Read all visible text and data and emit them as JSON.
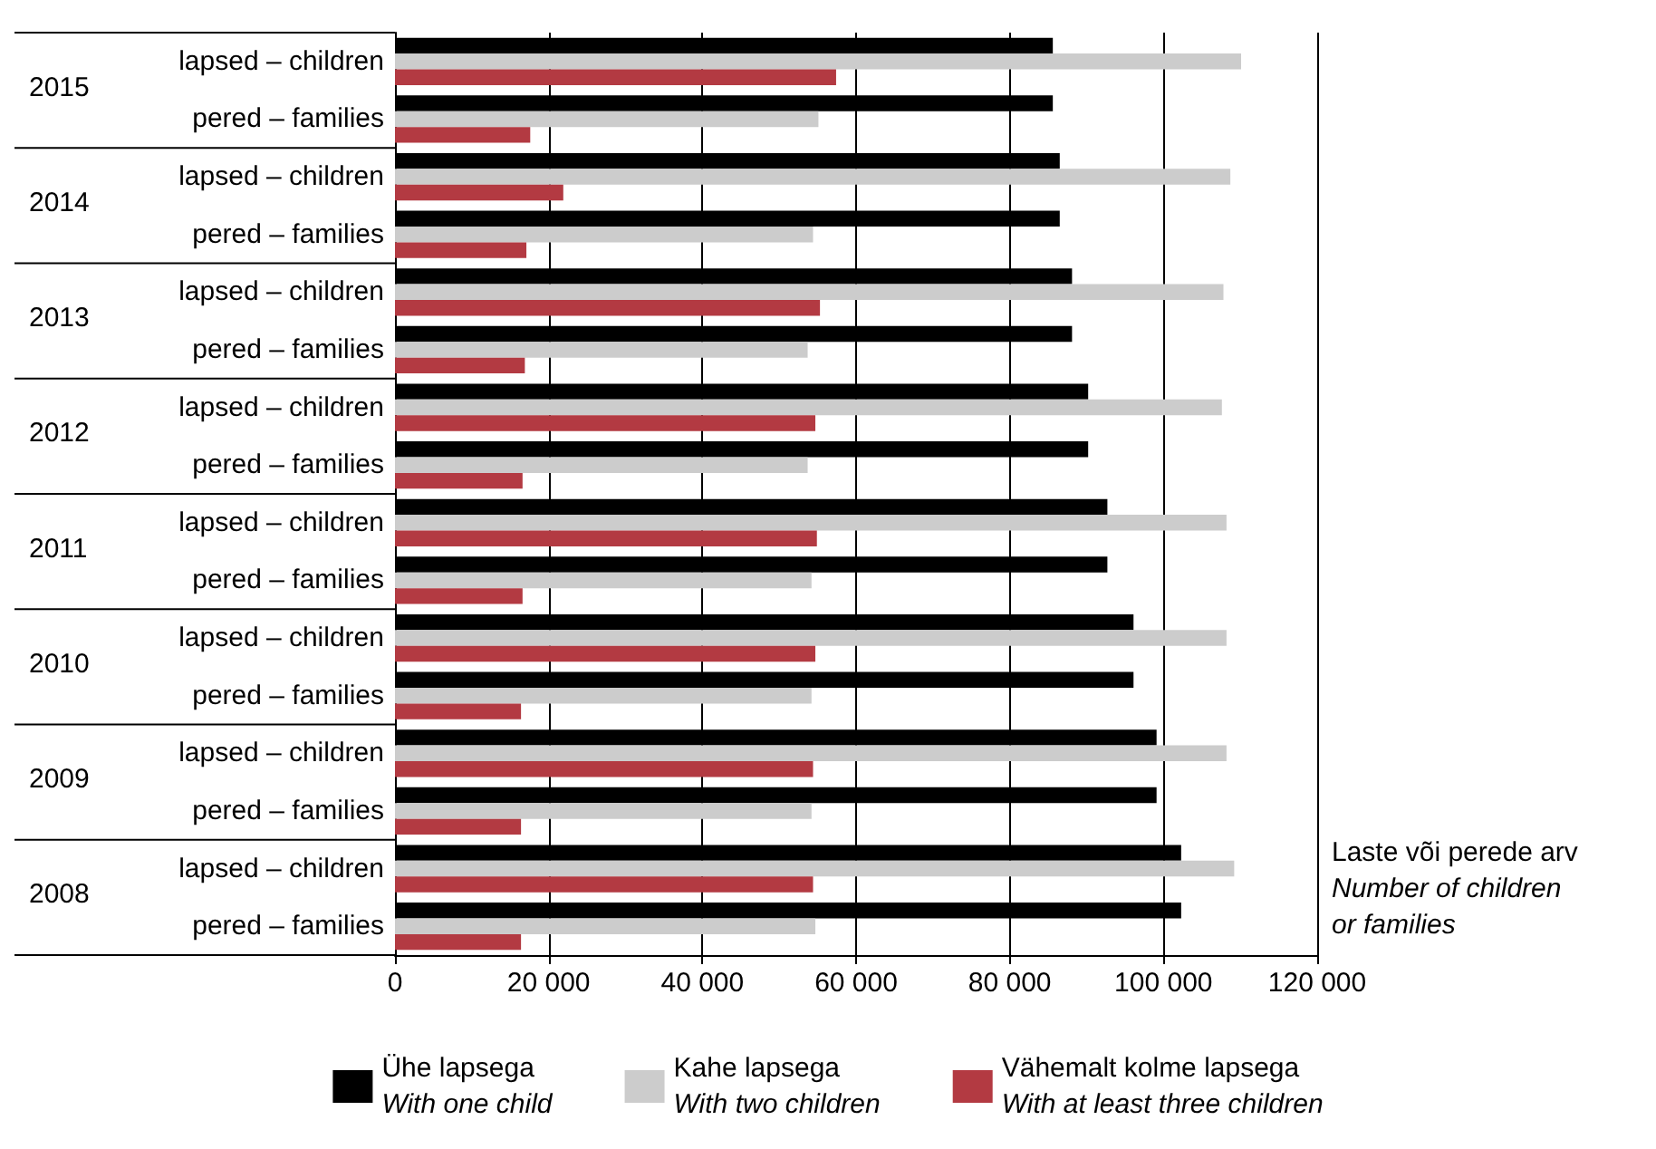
{
  "chart_data": {
    "type": "bar",
    "orientation": "horizontal",
    "xlabel": "Laste või perede arv\nNumber of children\nor families",
    "categories": [
      "lapsed – children",
      "pered – families",
      "lapsed – children",
      "pered – families",
      "lapsed – children",
      "pered – families",
      "lapsed – children",
      "pered – families",
      "lapsed – children",
      "pered – families",
      "lapsed – children",
      "pered – families",
      "lapsed – children",
      "pered – families",
      "lapsed – children",
      "pered – families"
    ],
    "annotations": [
      "2015",
      "2014",
      "2013",
      "2012",
      "2011",
      "2010",
      "2009",
      "2008"
    ],
    "series": [
      {
        "name": "Ühe lapsega\nWith one child",
        "color": "#000000",
        "values": [
          85600,
          85600,
          86500,
          86500,
          88100,
          88100,
          90200,
          90200,
          92700,
          92700,
          96100,
          96100,
          99100,
          99100,
          102300,
          102300
        ]
      },
      {
        "name": "Kahe lapsega\nWith two children",
        "color": "#cccccc",
        "values": [
          110100,
          55100,
          108700,
          54400,
          107800,
          53700,
          107600,
          53700,
          108200,
          54200,
          108200,
          54200,
          108200,
          54200,
          109200,
          54700
        ]
      },
      {
        "name": "Vähemalt kolme lapsega\nWith at least three children",
        "color": "#b33a42",
        "values": [
          57400,
          17600,
          21900,
          17100,
          55300,
          16900,
          54700,
          16600,
          54900,
          16600,
          54700,
          16400,
          54400,
          16400,
          54400,
          16400
        ]
      }
    ],
    "xlim": [
      0,
      120000
    ],
    "xticks": [
      0,
      {
        "value": 20000,
        "label": "20 000"
      },
      {
        "value": 40000,
        "label": "40 000"
      },
      {
        "value": 60000,
        "label": "60 000"
      },
      {
        "value": 80000,
        "label": "80 000"
      },
      {
        "value": 100000,
        "label": "100 000"
      },
      {
        "value": 120000,
        "label": "120 000"
      }
    ],
    "grid": "x",
    "legend": "bottom"
  }
}
